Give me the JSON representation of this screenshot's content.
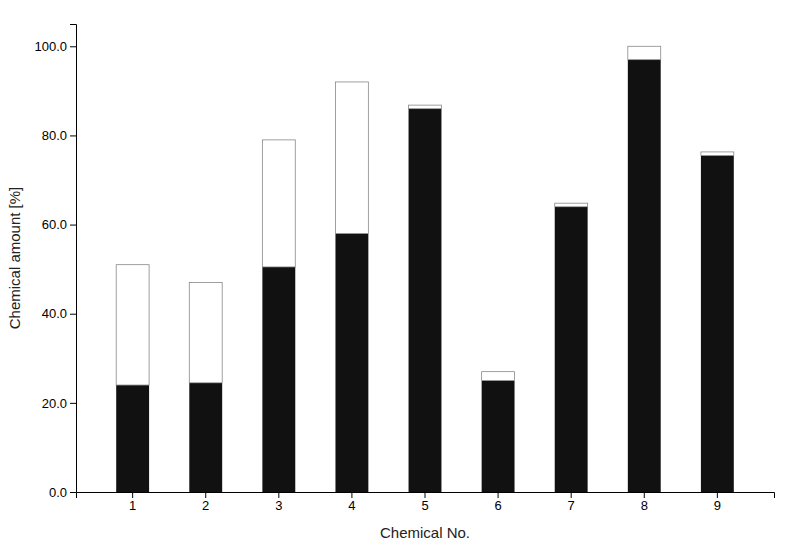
{
  "chart_data": {
    "type": "bar",
    "stacked": true,
    "categories": [
      "1",
      "2",
      "3",
      "4",
      "5",
      "6",
      "7",
      "8",
      "9"
    ],
    "series": [
      {
        "color": "#111111",
        "values": [
          24.0,
          24.5,
          50.5,
          58.0,
          86.0,
          25.0,
          64.0,
          97.0,
          75.5
        ]
      },
      {
        "color": "#ffffff",
        "values": [
          27.0,
          22.5,
          28.5,
          34.0,
          0.8,
          2.0,
          0.8,
          3.0,
          0.8
        ]
      }
    ],
    "xlabel": "Chemical No.",
    "ylabel": "Chemical amount [%]",
    "ylim": [
      0,
      105
    ],
    "yticks": [
      {
        "value": 0,
        "label": "0.0"
      },
      {
        "value": 20,
        "label": "20.0"
      },
      {
        "value": 40,
        "label": "40.0"
      },
      {
        "value": 60,
        "label": "60.0"
      },
      {
        "value": 80,
        "label": "80.0"
      },
      {
        "value": 100,
        "label": "100.0"
      }
    ],
    "grid": false
  }
}
